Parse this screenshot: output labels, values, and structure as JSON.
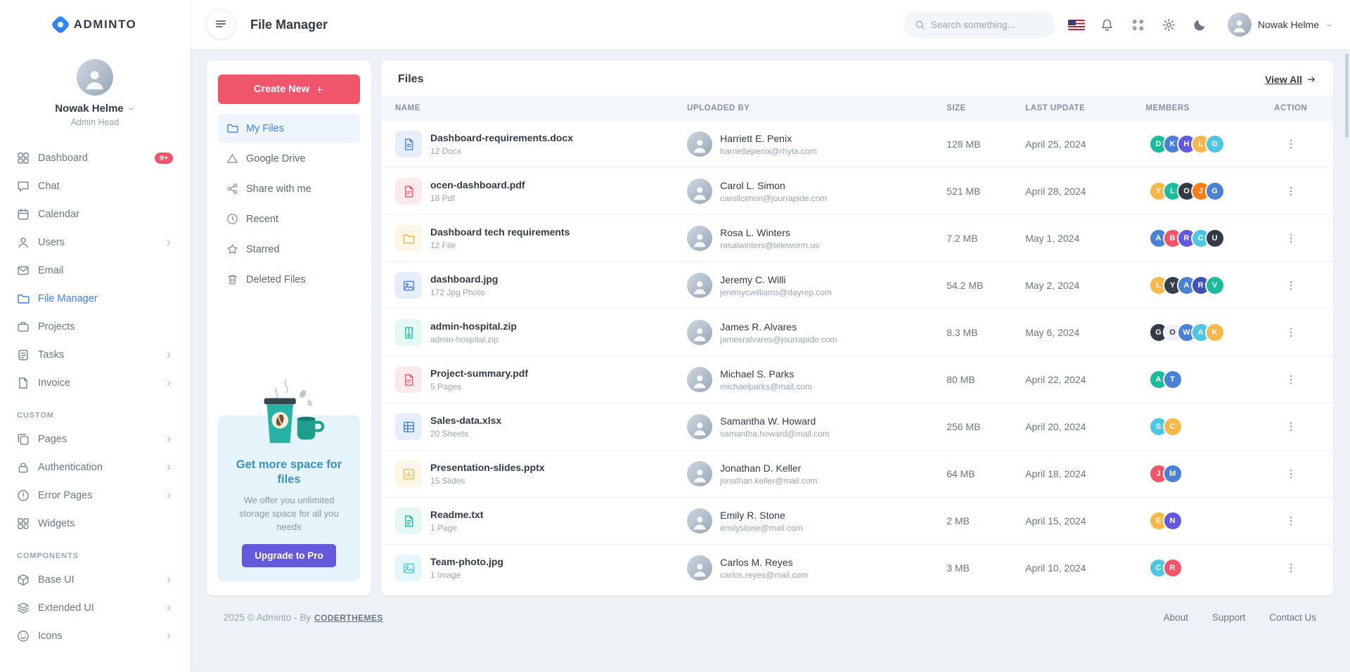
{
  "brand": {
    "name": "ADMINTO"
  },
  "topbar": {
    "page_title": "File Manager",
    "search_placeholder": "Search something...",
    "user_name": "Nowak Helme",
    "icons": [
      {
        "name": "us-flag-icon",
        "key": "flag"
      },
      {
        "name": "notification-icon",
        "key": "bell"
      },
      {
        "name": "apps-icon",
        "key": "apps"
      },
      {
        "name": "settings-icon",
        "key": "gear"
      },
      {
        "name": "theme-toggle-icon",
        "key": "moon"
      }
    ]
  },
  "profile": {
    "name": "Nowak Helme",
    "role": "Admin Head"
  },
  "sidebar": {
    "sections": [
      {
        "title": "",
        "items": [
          {
            "label": "Dashboard",
            "icon": "dashboard",
            "badge": "9+"
          },
          {
            "label": "Chat",
            "icon": "chat"
          },
          {
            "label": "Calendar",
            "icon": "calendar"
          },
          {
            "label": "Users",
            "icon": "users",
            "chevron": true
          },
          {
            "label": "Email",
            "icon": "email"
          },
          {
            "label": "File Manager",
            "icon": "folder",
            "active": true
          },
          {
            "label": "Projects",
            "icon": "briefcase"
          },
          {
            "label": "Tasks",
            "icon": "tasks",
            "chevron": true
          },
          {
            "label": "Invoice",
            "icon": "invoice",
            "chevron": true
          }
        ]
      },
      {
        "title": "CUSTOM",
        "items": [
          {
            "label": "Pages",
            "icon": "pages",
            "chevron": true
          },
          {
            "label": "Authentication",
            "icon": "lock",
            "chevron": true
          },
          {
            "label": "Error Pages",
            "icon": "alert",
            "chevron": true
          },
          {
            "label": "Widgets",
            "icon": "widgets"
          }
        ]
      },
      {
        "title": "COMPONENTS",
        "items": [
          {
            "label": "Base UI",
            "icon": "box",
            "chevron": true
          },
          {
            "label": "Extended UI",
            "icon": "layers",
            "chevron": true
          },
          {
            "label": "Icons",
            "icon": "smile",
            "chevron": true
          }
        ]
      }
    ]
  },
  "filemanager": {
    "create_button": "Create New",
    "nav": [
      {
        "label": "My Files",
        "icon": "folder",
        "active": true
      },
      {
        "label": "Google Drive",
        "icon": "drive"
      },
      {
        "label": "Share with me",
        "icon": "share"
      },
      {
        "label": "Recent",
        "icon": "clock"
      },
      {
        "label": "Starred",
        "icon": "star"
      },
      {
        "label": "Deleted Files",
        "icon": "trash"
      }
    ],
    "promo": {
      "title": "Get more space for files",
      "text": "We offer you unlimited storage space for all you needs",
      "button": "Upgrade to Pro"
    }
  },
  "files": {
    "title": "Files",
    "view_all": "View All",
    "columns": [
      "NAME",
      "UPLOADED BY",
      "SIZE",
      "LAST UPDATE",
      "MEMBERS",
      "ACTION"
    ],
    "rows": [
      {
        "name": "Dashboard-requirements.docx",
        "meta": "12 Docx",
        "icon": {
          "type": "doc",
          "color": "#4a81d4",
          "bg": "#e6eefb"
        },
        "uploader": "Harriett E. Penix",
        "email": "harriettepenix@rhyta.com",
        "size": "128 MB",
        "updated": "April 25, 2024",
        "members": [
          {
            "t": "D",
            "bg": "#1abc9c"
          },
          {
            "t": "K",
            "bg": "#4a81d4"
          },
          {
            "t": "H",
            "bg": "#6658dd"
          },
          {
            "t": "L",
            "bg": "#f7b84b"
          },
          {
            "t": "G",
            "bg": "#4fc6e1"
          }
        ]
      },
      {
        "name": "ocen-dashboard.pdf",
        "meta": "18 Pdf",
        "icon": {
          "type": "pdf",
          "color": "#f1556c",
          "bg": "#fdeaed"
        },
        "uploader": "Carol L. Simon",
        "email": "carollcimon@jourrapide.com",
        "size": "521 MB",
        "updated": "April 28, 2024",
        "members": [
          {
            "t": "Y",
            "bg": "#f7b84b"
          },
          {
            "t": "L",
            "bg": "#1abc9c"
          },
          {
            "t": "O",
            "bg": "#323a46"
          },
          {
            "t": "J",
            "bg": "#fd7e14"
          },
          {
            "t": "G",
            "bg": "#4a81d4"
          }
        ]
      },
      {
        "name": "Dashboard tech requirements",
        "meta": "12 File",
        "icon": {
          "type": "folder",
          "color": "#f7b84b",
          "bg": "#fef6e6"
        },
        "uploader": "Rosa L. Winters",
        "email": "rosalwinters@teleworm.us",
        "size": "7.2 MB",
        "updated": "May 1, 2024",
        "members": [
          {
            "t": "A",
            "bg": "#4a81d4"
          },
          {
            "t": "B",
            "bg": "#f1556c"
          },
          {
            "t": "R",
            "bg": "#6658dd"
          },
          {
            "t": "C",
            "bg": "#4fc6e1"
          },
          {
            "t": "U",
            "bg": "#323a46"
          }
        ]
      },
      {
        "name": "dashboard.jpg",
        "meta": "172 Jpg Photo",
        "icon": {
          "type": "image",
          "color": "#4a81d4",
          "bg": "#e6eefb"
        },
        "uploader": "Jeremy C. Willi",
        "email": "jeremycwilliams@dayrep.com",
        "size": "54.2 MB",
        "updated": "May 2, 2024",
        "members": [
          {
            "t": "L",
            "bg": "#f7b84b"
          },
          {
            "t": "Y",
            "bg": "#36404a"
          },
          {
            "t": "A",
            "bg": "#4a81d4"
          },
          {
            "t": "R",
            "bg": "#3f51b5"
          },
          {
            "t": "V",
            "bg": "#1abc9c"
          }
        ]
      },
      {
        "name": "admin-hospital.zip",
        "meta": "admin-hospital.zip",
        "icon": {
          "type": "zip",
          "color": "#1abc9c",
          "bg": "#e4f8f4"
        },
        "uploader": "James R. Alvares",
        "email": "jamesralvares@jourrapide.com",
        "size": "8.3 MB",
        "updated": "May 6, 2024",
        "members": [
          {
            "t": "G",
            "bg": "#323a46"
          },
          {
            "t": "O",
            "bg": "#eef2f6",
            "fg": "#323a46"
          },
          {
            "t": "W",
            "bg": "#4a81d4"
          },
          {
            "t": "A",
            "bg": "#4fc6e1"
          },
          {
            "t": "K",
            "bg": "#f7b84b"
          }
        ]
      },
      {
        "name": "Project-summary.pdf",
        "meta": "5 Pages",
        "icon": {
          "type": "pdf",
          "color": "#f1556c",
          "bg": "#fdeaed"
        },
        "uploader": "Michael S. Parks",
        "email": "michaelparks@mail.com",
        "size": "80 MB",
        "updated": "April 22, 2024",
        "members": [
          {
            "t": "A",
            "bg": "#1abc9c"
          },
          {
            "t": "T",
            "bg": "#4a81d4"
          }
        ]
      },
      {
        "name": "Sales-data.xlsx",
        "meta": "20 Sheets",
        "icon": {
          "type": "sheet",
          "color": "#4a81d4",
          "bg": "#e6eefb"
        },
        "uploader": "Samantha W. Howard",
        "email": "samantha.howard@mail.com",
        "size": "256 MB",
        "updated": "April 20, 2024",
        "members": [
          {
            "t": "S",
            "bg": "#4fc6e1"
          },
          {
            "t": "C",
            "bg": "#f7b84b"
          }
        ]
      },
      {
        "name": "Presentation-slides.pptx",
        "meta": "15 Slides",
        "icon": {
          "type": "slides",
          "color": "#f7b84b",
          "bg": "#fef6e6"
        },
        "uploader": "Jonathan D. Keller",
        "email": "jonathan.keller@mail.com",
        "size": "64 MB",
        "updated": "April 18, 2024",
        "members": [
          {
            "t": "J",
            "bg": "#f1556c"
          },
          {
            "t": "M",
            "bg": "#4a81d4"
          }
        ]
      },
      {
        "name": "Readme.txt",
        "meta": "1 Page",
        "icon": {
          "type": "text",
          "color": "#1abc9c",
          "bg": "#e4f8f4"
        },
        "uploader": "Emily R. Stone",
        "email": "emilystone@mail.com",
        "size": "2 MB",
        "updated": "April 15, 2024",
        "members": [
          {
            "t": "E",
            "bg": "#f7b84b"
          },
          {
            "t": "N",
            "bg": "#6658dd"
          }
        ]
      },
      {
        "name": "Team-photo.jpg",
        "meta": "1 Image",
        "icon": {
          "type": "image",
          "color": "#4fc6e1",
          "bg": "#e6f7fb"
        },
        "uploader": "Carlos M. Reyes",
        "email": "carlos.reyes@mail.com",
        "size": "3 MB",
        "updated": "April 10, 2024",
        "members": [
          {
            "t": "C",
            "bg": "#4fc6e1"
          },
          {
            "t": "R",
            "bg": "#f1556c"
          }
        ]
      }
    ]
  },
  "footer": {
    "text": "2025 © Adminto - By",
    "brand_link": "CODERTHEMES",
    "links": [
      "About",
      "Support",
      "Contact Us"
    ]
  }
}
